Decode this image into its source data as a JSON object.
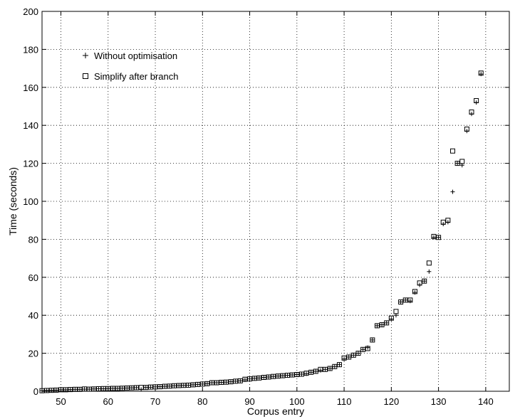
{
  "chart_data": {
    "type": "scatter",
    "title": "",
    "xlabel": "Corpus entry",
    "ylabel": "Time (seconds)",
    "xlim": [
      46,
      145
    ],
    "ylim": [
      0,
      200
    ],
    "xticks": [
      50,
      60,
      70,
      80,
      90,
      100,
      110,
      120,
      130,
      140
    ],
    "yticks": [
      0,
      20,
      40,
      60,
      80,
      100,
      120,
      140,
      160,
      180,
      200
    ],
    "grid": true,
    "grid_style": "dotted",
    "legend_position": "top-left",
    "legend": [
      {
        "marker": "plus",
        "label": "Without optimisation"
      },
      {
        "marker": "square",
        "label": "Simplify after branch"
      }
    ],
    "series": [
      {
        "name": "Without optimisation",
        "marker": "plus",
        "x": [
          46,
          47,
          48,
          49,
          50,
          51,
          52,
          53,
          54,
          55,
          56,
          57,
          58,
          59,
          60,
          61,
          62,
          63,
          64,
          65,
          66,
          67,
          68,
          69,
          70,
          71,
          72,
          73,
          74,
          75,
          76,
          77,
          78,
          79,
          80,
          81,
          82,
          83,
          84,
          85,
          86,
          87,
          88,
          89,
          90,
          91,
          92,
          93,
          94,
          95,
          96,
          97,
          98,
          99,
          100,
          101,
          102,
          103,
          104,
          105,
          106,
          107,
          108,
          109,
          110,
          111,
          112,
          113,
          114,
          115,
          116,
          117,
          118,
          119,
          120,
          121,
          122,
          123,
          124,
          125,
          126,
          127,
          128,
          129,
          130,
          131,
          132,
          133,
          134,
          135,
          136,
          137,
          138,
          139
        ],
        "y": [
          0.3,
          0.4,
          0.5,
          0.6,
          0.8,
          0.8,
          0.9,
          1.0,
          1.0,
          1.1,
          1.1,
          1.2,
          1.3,
          1.3,
          1.4,
          1.5,
          1.5,
          1.6,
          1.7,
          1.8,
          1.9,
          1.0,
          2.0,
          2.1,
          2.3,
          2.4,
          2.6,
          2.7,
          2.9,
          3.0,
          3.1,
          3.2,
          3.4,
          3.6,
          3.8,
          4.0,
          4.5,
          4.5,
          4.7,
          4.8,
          5.0,
          5.3,
          5.5,
          6.0,
          6.5,
          6.8,
          7.0,
          7.3,
          7.5,
          7.8,
          8.0,
          8.2,
          8.4,
          8.6,
          8.8,
          9.0,
          9.2,
          10.0,
          10.5,
          11.0,
          11.5,
          12.0,
          13.0,
          14.0,
          17.0,
          18.0,
          19.0,
          20.0,
          22.0,
          23.0,
          27.0,
          34.5,
          35.0,
          36.0,
          38.0,
          40.0,
          47.0,
          48.0,
          47.5,
          52.0,
          56.0,
          58.0,
          63.0,
          81.0,
          81.0,
          88.0,
          89.0,
          105.0,
          120.0,
          119.0,
          137.0,
          146.0,
          152.0,
          167.0
        ]
      },
      {
        "name": "Simplify after branch",
        "marker": "square",
        "x": [
          46,
          47,
          48,
          49,
          50,
          51,
          52,
          53,
          54,
          55,
          56,
          57,
          58,
          59,
          60,
          61,
          62,
          63,
          64,
          65,
          66,
          67,
          68,
          69,
          70,
          71,
          72,
          73,
          74,
          75,
          76,
          77,
          78,
          79,
          80,
          81,
          82,
          83,
          84,
          85,
          86,
          87,
          88,
          89,
          90,
          91,
          92,
          93,
          94,
          95,
          96,
          97,
          98,
          99,
          100,
          101,
          102,
          103,
          104,
          105,
          106,
          107,
          108,
          109,
          110,
          111,
          112,
          113,
          114,
          115,
          116,
          117,
          118,
          119,
          120,
          121,
          122,
          123,
          124,
          125,
          126,
          127,
          128,
          129,
          130,
          131,
          132,
          133,
          134,
          135,
          136,
          137,
          138,
          139
        ],
        "y": [
          0.3,
          0.4,
          0.5,
          0.6,
          0.8,
          0.8,
          0.9,
          1.0,
          1.0,
          1.2,
          1.1,
          1.2,
          1.3,
          1.4,
          1.4,
          1.5,
          1.5,
          1.6,
          1.7,
          1.8,
          1.9,
          2.0,
          2.0,
          2.2,
          2.3,
          2.4,
          2.6,
          2.7,
          2.9,
          3.0,
          3.1,
          3.2,
          3.4,
          3.6,
          3.8,
          4.0,
          4.5,
          4.5,
          4.7,
          4.8,
          5.0,
          5.3,
          5.5,
          6.3,
          6.5,
          6.8,
          7.0,
          7.3,
          7.5,
          7.8,
          8.0,
          8.2,
          8.4,
          8.6,
          8.8,
          9.0,
          9.5,
          10.0,
          10.5,
          11.5,
          11.5,
          12.0,
          13.0,
          14.0,
          17.5,
          18.0,
          19.0,
          20.0,
          22.0,
          22.5,
          27.0,
          34.5,
          35.0,
          36.0,
          38.5,
          42.0,
          47.0,
          48.0,
          48.0,
          52.5,
          57.0,
          58.0,
          67.5,
          81.5,
          81.0,
          89.0,
          90.0,
          126.5,
          120.0,
          121.0,
          138.0,
          147.0,
          153.0,
          167.5
        ]
      }
    ]
  }
}
